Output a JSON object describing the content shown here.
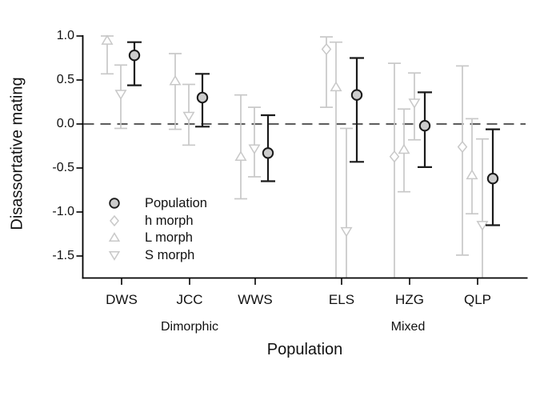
{
  "figure": {
    "y_axis": {
      "title": "Disassortative mating",
      "ticks": [
        "1.0",
        "0.5",
        "0.0",
        "-0.5",
        "-1.0",
        "-1.5"
      ],
      "tick_values": [
        1.0,
        0.5,
        0.0,
        -0.5,
        -1.0,
        -1.5
      ]
    },
    "x_axis": {
      "title": "Population",
      "categories": [
        "DWS",
        "JCC",
        "WWS",
        "ELS",
        "HZG",
        "QLP"
      ],
      "group_labels": [
        {
          "label": "Dimorphic",
          "categories": [
            "DWS",
            "JCC",
            "WWS"
          ]
        },
        {
          "label": "Mixed",
          "categories": [
            "ELS",
            "HZG",
            "QLP"
          ]
        }
      ]
    },
    "legend": [
      {
        "label": "Population",
        "marker": "circle"
      },
      {
        "label": "h morph",
        "marker": "diamond"
      },
      {
        "label": "L morph",
        "marker": "triangle-up"
      },
      {
        "label": "S morph",
        "marker": "triangle-down"
      }
    ]
  },
  "chart_data": {
    "type": "scatter",
    "title": "",
    "xlabel": "Population",
    "ylabel": "Disassortative mating",
    "ylim": [
      -1.75,
      1.1
    ],
    "zero_reference_line": 0.0,
    "grid": false,
    "legend_position": "inside-bottom-left",
    "categories": [
      "DWS",
      "JCC",
      "WWS",
      "ELS",
      "HZG",
      "QLP"
    ],
    "category_groups": {
      "DWS": "dimorphic",
      "JCC": "dimorphic",
      "WWS": "dimorphic",
      "ELS": "mixed",
      "HZG": "mixed",
      "QLP": "mixed"
    },
    "series": [
      {
        "name": "h morph",
        "marker": "diamond",
        "points": [
          {
            "cat": "ELS",
            "y": 0.85,
            "lo": 0.19,
            "hi": 0.99
          },
          {
            "cat": "HZG",
            "y": -0.37,
            "lo": null,
            "lo_clipped": true,
            "hi": 0.69
          },
          {
            "cat": "QLP",
            "y": -0.26,
            "lo": -1.49,
            "hi": 0.66
          }
        ]
      },
      {
        "name": "L morph",
        "marker": "triangle-up",
        "points": [
          {
            "cat": "DWS",
            "y": 0.95,
            "lo": 0.57,
            "hi": 1.0
          },
          {
            "cat": "JCC",
            "y": 0.49,
            "lo": -0.06,
            "hi": 0.8
          },
          {
            "cat": "WWS",
            "y": -0.37,
            "lo": -0.85,
            "hi": 0.33
          },
          {
            "cat": "ELS",
            "y": 0.42,
            "lo": null,
            "lo_clipped": true,
            "hi": 0.93
          },
          {
            "cat": "HZG",
            "y": -0.29,
            "lo": -0.77,
            "hi": 0.17
          },
          {
            "cat": "QLP",
            "y": -0.58,
            "lo": -1.02,
            "hi": 0.06
          }
        ]
      },
      {
        "name": "S morph",
        "marker": "triangle-down",
        "points": [
          {
            "cat": "DWS",
            "y": 0.34,
            "lo": -0.05,
            "hi": 0.67
          },
          {
            "cat": "JCC",
            "y": 0.09,
            "lo": -0.24,
            "hi": 0.45
          },
          {
            "cat": "WWS",
            "y": -0.28,
            "lo": -0.6,
            "hi": 0.19
          },
          {
            "cat": "ELS",
            "y": -1.22,
            "lo": null,
            "lo_clipped": true,
            "hi": -0.05
          },
          {
            "cat": "HZG",
            "y": 0.24,
            "lo": -0.18,
            "hi": 0.58
          },
          {
            "cat": "QLP",
            "y": -1.15,
            "lo": null,
            "lo_clipped": true,
            "hi": -0.17
          }
        ]
      },
      {
        "name": "Population",
        "marker": "circle",
        "points": [
          {
            "cat": "DWS",
            "y": 0.78,
            "lo": 0.44,
            "hi": 0.93
          },
          {
            "cat": "JCC",
            "y": 0.3,
            "lo": -0.03,
            "hi": 0.57
          },
          {
            "cat": "WWS",
            "y": -0.33,
            "lo": -0.65,
            "hi": 0.1
          },
          {
            "cat": "ELS",
            "y": 0.33,
            "lo": -0.43,
            "hi": 0.75
          },
          {
            "cat": "HZG",
            "y": -0.02,
            "lo": -0.49,
            "hi": 0.36
          },
          {
            "cat": "QLP",
            "y": -0.62,
            "lo": -1.15,
            "hi": -0.06
          }
        ]
      }
    ]
  },
  "colors": {
    "morph": "#c8c8c8",
    "population_stroke": "#1a1a1a",
    "population_fill": "#cccccc",
    "axis": "#000000",
    "zero_line": "#262626",
    "background": "#ffffff"
  }
}
